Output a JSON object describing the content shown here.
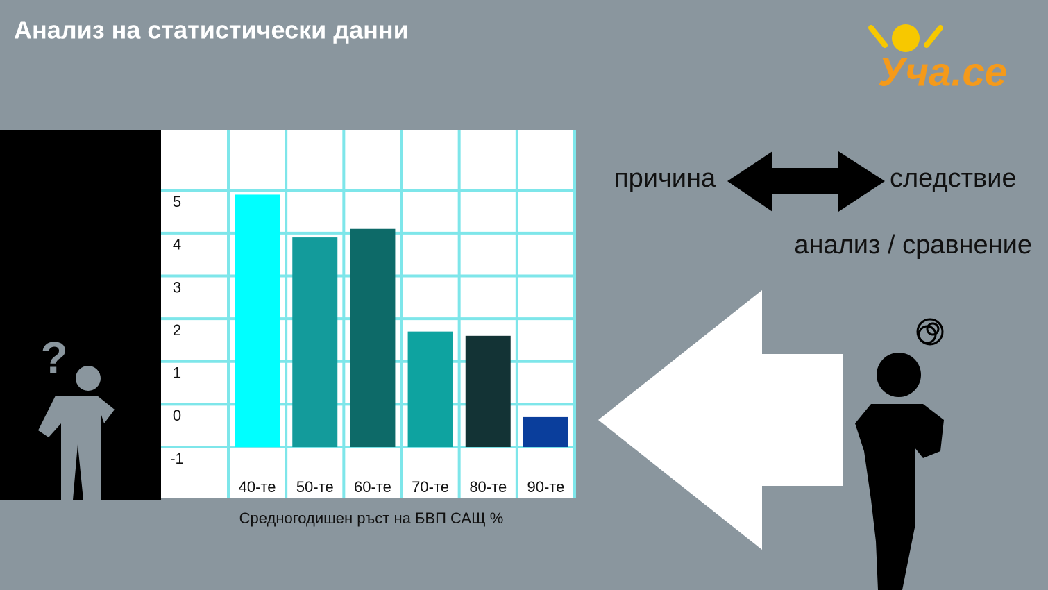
{
  "header": {
    "title": "Анализ на статистически данни",
    "logo": "Уча.се"
  },
  "concepts": {
    "cause": "причина",
    "effect": "следствие",
    "method": "анализ / сравнение"
  },
  "chart_data": {
    "type": "bar",
    "x_label": "Средногодишен ръст на БВП САЩ %",
    "categories": [
      "40-те",
      "50-те",
      "60-те",
      "70-те",
      "80-те",
      "90-те"
    ],
    "values": [
      4.9,
      3.9,
      4.1,
      1.7,
      1.6,
      -0.3
    ],
    "colors": [
      "#00ffff",
      "#139b9b",
      "#0d6a68",
      "#0ea3a0",
      "#133335",
      "#0a3e9c"
    ],
    "ylim": [
      -2.2,
      6.4
    ],
    "yticks": [
      -1,
      0,
      1,
      2,
      3,
      4,
      5
    ],
    "grid": true,
    "grid_color": "#7ee6ea"
  }
}
